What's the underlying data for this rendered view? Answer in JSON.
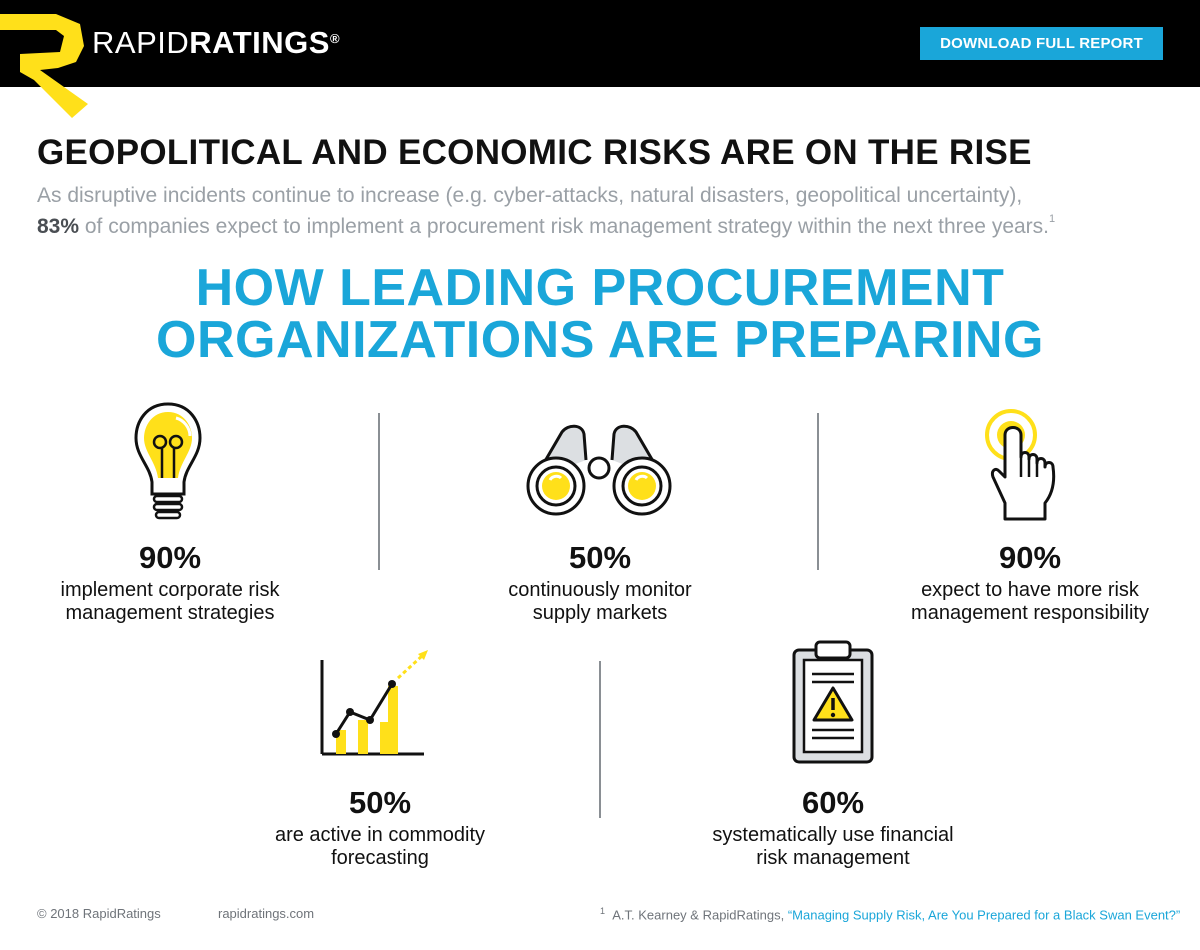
{
  "header": {
    "brand_light": "RAPID",
    "brand_bold": "RATINGS",
    "brand_mark": "®",
    "download_button": "DOWNLOAD FULL REPORT"
  },
  "headline": "GEOPOLITICAL AND ECONOMIC RISKS ARE ON THE RISE",
  "intro": {
    "line1": "As disruptive incidents continue to increase (e.g. cyber-attacks, natural disasters, geopolitical uncertainty),",
    "stat": "83%",
    "line2": " of companies expect to implement a procurement risk management strategy within the next three years.",
    "footnote_ref": "1"
  },
  "sub_headline": {
    "line1": "HOW LEADING PROCUREMENT",
    "line2": "ORGANIZATIONS ARE PREPARING"
  },
  "stats": [
    {
      "icon": "lightbulb-icon",
      "percent": "90%",
      "line1": "implement corporate risk",
      "line2": "management strategies"
    },
    {
      "icon": "binoculars-icon",
      "percent": "50%",
      "line1": "continuously monitor",
      "line2": "supply markets"
    },
    {
      "icon": "pointing-hand-icon",
      "percent": "90%",
      "line1": "expect to have more risk",
      "line2": "management responsibility"
    },
    {
      "icon": "line-chart-icon",
      "percent": "50%",
      "line1": "are active in commodity",
      "line2": "forecasting"
    },
    {
      "icon": "clipboard-warning-icon",
      "percent": "60%",
      "line1": "systematically use financial",
      "line2": "risk management"
    }
  ],
  "colors": {
    "accent_blue": "#1aa6d9",
    "accent_yellow": "#ffe01a",
    "dark": "#000000",
    "muted_gray": "#9aa0a6"
  },
  "footer": {
    "copyright": "© 2018 RapidRatings",
    "website": "rapidratings.com",
    "footnote_num": "1",
    "source_author": "A.T. Kearney & RapidRatings, ",
    "source_title": "“Managing Supply Risk, Are You Prepared for a Black Swan Event?”"
  }
}
